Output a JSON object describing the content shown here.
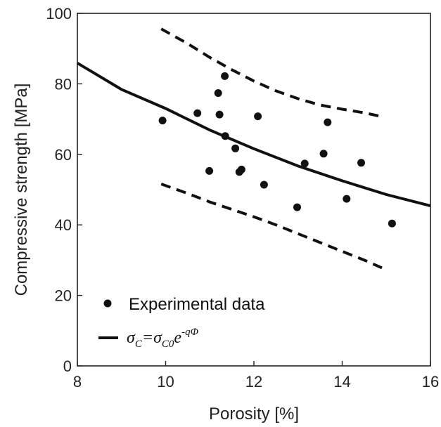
{
  "chart_data": {
    "type": "scatter",
    "xlabel": "Porosity [%]",
    "ylabel": "Compressive strength [MPa]",
    "xlim": [
      8,
      16
    ],
    "ylim": [
      0,
      100
    ],
    "xticks": [
      8,
      10,
      12,
      14,
      16
    ],
    "yticks": [
      0,
      20,
      40,
      60,
      80,
      100
    ],
    "grid": false,
    "legend_position": "bottom-left",
    "series": [
      {
        "name": "Experimental data",
        "kind": "points",
        "color": "#111111",
        "points": [
          [
            9.93,
            69.6
          ],
          [
            10.72,
            71.7
          ],
          [
            10.99,
            55.3
          ],
          [
            11.19,
            77.4
          ],
          [
            11.22,
            71.3
          ],
          [
            11.34,
            82.2
          ],
          [
            11.35,
            65.2
          ],
          [
            11.58,
            61.7
          ],
          [
            11.67,
            55.0
          ],
          [
            11.72,
            55.7
          ],
          [
            12.09,
            70.8
          ],
          [
            12.23,
            51.4
          ],
          [
            12.98,
            45.0
          ],
          [
            13.15,
            57.4
          ],
          [
            13.58,
            60.2
          ],
          [
            13.67,
            69.1
          ],
          [
            14.1,
            47.4
          ],
          [
            14.43,
            57.6
          ],
          [
            15.13,
            40.4
          ]
        ]
      },
      {
        "name": "fit",
        "kind": "curve",
        "style": "solid",
        "color": "#111111",
        "x": [
          8,
          9,
          10,
          11,
          12,
          13,
          14,
          15,
          16
        ],
        "y": [
          85.9,
          78.4,
          73.0,
          66.9,
          61.6,
          56.7,
          52.5,
          48.6,
          45.4
        ]
      },
      {
        "name": "upper bound",
        "kind": "curve",
        "style": "dashed",
        "color": "#111111",
        "x": [
          9.9,
          10.5,
          11,
          11.5,
          12,
          12.5,
          13,
          13.5,
          14,
          14.5,
          14.9
        ],
        "y": [
          95.6,
          91.4,
          87.5,
          84.0,
          80.8,
          78.0,
          75.8,
          74.0,
          72.8,
          71.8,
          70.7
        ]
      },
      {
        "name": "lower bound",
        "kind": "curve",
        "style": "dashed",
        "color": "#111111",
        "x": [
          9.9,
          10.5,
          11,
          11.5,
          12,
          12.5,
          13,
          13.5,
          14,
          14.5,
          14.9
        ],
        "y": [
          51.6,
          48.9,
          46.5,
          44.4,
          42.3,
          40.0,
          37.5,
          35.0,
          32.5,
          30.0,
          27.8
        ]
      }
    ],
    "legend": {
      "points_label": "Experimental data",
      "line_label": {
        "sigma": "σ",
        "sub_c": "C",
        "eq": "=",
        "sub_c0": "C0",
        "e": "e",
        "exponent": "-qΦ"
      }
    }
  }
}
